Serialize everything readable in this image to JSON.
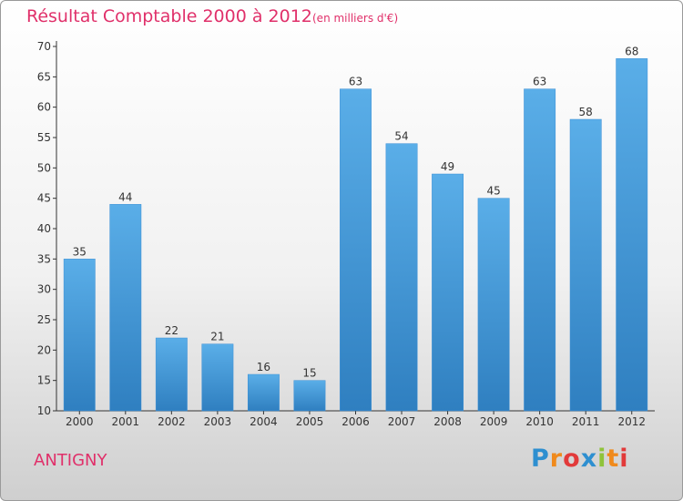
{
  "title": "Résultat Comptable 2000 à 2012",
  "subtitle": "(en milliers d'€)",
  "commune": "ANTIGNY",
  "brand": {
    "text": "Proxiti",
    "letters": [
      {
        "ch": "P",
        "color": "#2e8fd0"
      },
      {
        "ch": "r",
        "color": "#f08a1c"
      },
      {
        "ch": "o",
        "color": "#e23a3a"
      },
      {
        "ch": "x",
        "color": "#2e8fd0"
      },
      {
        "ch": "i",
        "color": "#8fc33a"
      },
      {
        "ch": "t",
        "color": "#f08a1c"
      },
      {
        "ch": "i",
        "color": "#e23a3a"
      }
    ]
  },
  "colors": {
    "title": "#e0306a",
    "bar_light": "#5aaee8",
    "bar_dark": "#2f7fc0",
    "axis": "#333333",
    "gridline": "#cfcfcf"
  },
  "chart_data": {
    "type": "bar",
    "title": "Résultat Comptable 2000 à 2012",
    "subtitle": "(en milliers d'€)",
    "xlabel": "",
    "ylabel": "",
    "categories": [
      "2000",
      "2001",
      "2002",
      "2003",
      "2004",
      "2005",
      "2006",
      "2007",
      "2008",
      "2009",
      "2010",
      "2011",
      "2012"
    ],
    "values": [
      35,
      44,
      22,
      21,
      16,
      15,
      63,
      54,
      49,
      45,
      63,
      58,
      68
    ],
    "ylim": [
      10,
      70
    ],
    "yticks": [
      10,
      15,
      20,
      25,
      30,
      35,
      40,
      45,
      50,
      55,
      60,
      65,
      70
    ],
    "grid": false,
    "legend": "none"
  }
}
